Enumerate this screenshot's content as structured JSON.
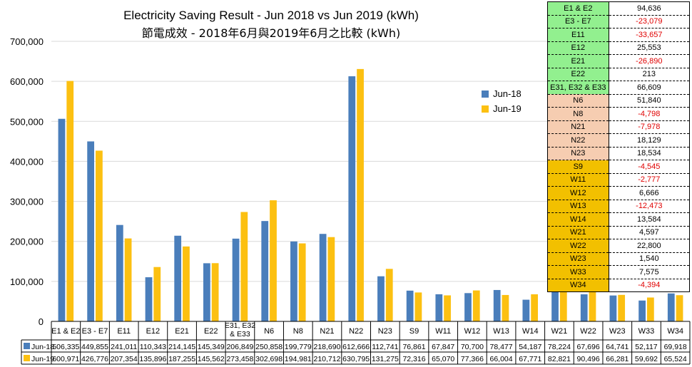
{
  "titles": {
    "line1": "Electricity Saving Result - Jun 2018 vs Jun 2019 (kWh)",
    "line2": "節電成效 - 2018年6月與2019年6月之比較 (kWh)"
  },
  "colors": {
    "jun18": "#4a7ebb",
    "jun19": "#fcc011",
    "group_e": "#92f08f",
    "group_n": "#f6cdb1",
    "group_w": "#f2c000",
    "negative": "#e00000"
  },
  "chart_data": {
    "type": "bar",
    "title": "Electricity Saving Result - Jun 2018 vs Jun 2019 (kWh)",
    "subtitle": "節電成效 - 2018年6月與2019年6月之比較 (kWh)",
    "categories": [
      "E1 & E2",
      "E3 - E7",
      "E11",
      "E12",
      "E21",
      "E22",
      "E31, E32 & E33",
      "N6",
      "N8",
      "N21",
      "N22",
      "N23",
      "S9",
      "W11",
      "W12",
      "W13",
      "W14",
      "W21",
      "W22",
      "W23",
      "W33",
      "W34"
    ],
    "series": [
      {
        "name": "Jun-18",
        "values": [
          506335,
          449855,
          241011,
          110343,
          214145,
          145349,
          206849,
          250858,
          199779,
          218690,
          612666,
          112741,
          76861,
          67847,
          70700,
          78477,
          54187,
          78224,
          67696,
          64741,
          52117,
          69918
        ],
        "labels": [
          "506,335",
          "449,855",
          "241,011",
          "110,343",
          "214,145",
          "145,349",
          "206,849",
          "250,858",
          "199,779",
          "218,690",
          "612,666",
          "112,741",
          "76,861",
          "67,847",
          "70,700",
          "78,477",
          "54,187",
          "78,224",
          "67,696",
          "64,741",
          "52,117",
          "69,918"
        ]
      },
      {
        "name": "Jun-19",
        "values": [
          600971,
          426776,
          207354,
          135896,
          187255,
          145562,
          273458,
          302698,
          194981,
          210712,
          630795,
          131275,
          72316,
          65070,
          77366,
          66004,
          67771,
          82821,
          90496,
          66281,
          59692,
          65524
        ],
        "labels": [
          "600,971",
          "426,776",
          "207,354",
          "135,896",
          "187,255",
          "145,562",
          "273,458",
          "302,698",
          "194,981",
          "210,712",
          "630,795",
          "131,275",
          "72,316",
          "65,070",
          "77,366",
          "66,004",
          "67,771",
          "82,821",
          "90,496",
          "66,281",
          "59,692",
          "65,524"
        ]
      }
    ],
    "ylim": [
      0,
      700000
    ],
    "yticks": [
      0,
      100000,
      200000,
      300000,
      400000,
      500000,
      600000,
      700000
    ],
    "ytick_labels": [
      "0",
      "100,000",
      "200,000",
      "300,000",
      "400,000",
      "500,000",
      "600,000",
      "700,000"
    ],
    "grid": true,
    "legend": "right"
  },
  "savings_table": [
    {
      "name": "E1 & E2",
      "value": "94,636",
      "group": "e"
    },
    {
      "name": "E3 - E7",
      "value": "-23,079",
      "group": "e"
    },
    {
      "name": "E11",
      "value": "-33,657",
      "group": "e"
    },
    {
      "name": "E12",
      "value": "25,553",
      "group": "e"
    },
    {
      "name": "E21",
      "value": "-26,890",
      "group": "e"
    },
    {
      "name": "E22",
      "value": "213",
      "group": "e"
    },
    {
      "name": "E31, E32 & E33",
      "value": "66,609",
      "group": "e"
    },
    {
      "name": "N6",
      "value": "51,840",
      "group": "n"
    },
    {
      "name": "N8",
      "value": "-4,798",
      "group": "n"
    },
    {
      "name": "N21",
      "value": "-7,978",
      "group": "n"
    },
    {
      "name": "N22",
      "value": "18,129",
      "group": "n"
    },
    {
      "name": "N23",
      "value": "18,534",
      "group": "n"
    },
    {
      "name": "S9",
      "value": "-4,545",
      "group": "w"
    },
    {
      "name": "W11",
      "value": "-2,777",
      "group": "w"
    },
    {
      "name": "W12",
      "value": "6,666",
      "group": "w"
    },
    {
      "name": "W13",
      "value": "-12,473",
      "group": "w"
    },
    {
      "name": "W14",
      "value": "13,584",
      "group": "w"
    },
    {
      "name": "W21",
      "value": "4,597",
      "group": "w"
    },
    {
      "name": "W22",
      "value": "22,800",
      "group": "w"
    },
    {
      "name": "W23",
      "value": "1,540",
      "group": "w"
    },
    {
      "name": "W33",
      "value": "7,575",
      "group": "w"
    },
    {
      "name": "W34",
      "value": "-4,394",
      "group": "w"
    }
  ]
}
